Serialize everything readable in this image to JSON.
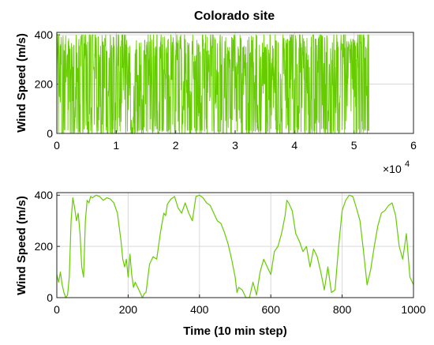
{
  "colors": {
    "series": "#66cc00",
    "axis": "#222222",
    "grid": "#d9d9d9"
  },
  "chart_data": [
    {
      "type": "line",
      "title": "Colorado site",
      "xlabel": "",
      "ylabel": "Wind Speed (m/s)",
      "xlim": [
        0,
        6
      ],
      "ylim": [
        0,
        410
      ],
      "xticks": [
        0,
        1,
        2,
        3,
        4,
        5,
        6
      ],
      "yticks": [
        0,
        200,
        400
      ],
      "x_exponent_label": "×10",
      "x_exponent_power": "4",
      "grid": true,
      "x_end": 5.25,
      "y_max": 400,
      "note": "dense trace of ~52500 points between 0 and 400 m/s"
    },
    {
      "type": "line",
      "title": "",
      "xlabel": "Time (10 min step)",
      "ylabel": "Wind Speed (m/s)",
      "xlim": [
        0,
        1000
      ],
      "ylim": [
        0,
        410
      ],
      "xticks": [
        0,
        200,
        400,
        600,
        800,
        1000
      ],
      "yticks": [
        0,
        200,
        400
      ],
      "grid": true,
      "series": [
        {
          "x": [
            0,
            5,
            10,
            15,
            20,
            25,
            30,
            35,
            40,
            45,
            50,
            55,
            60,
            65,
            70,
            75,
            80,
            85,
            90,
            95,
            100,
            110,
            120,
            130,
            140,
            150,
            160,
            170,
            180,
            185,
            190,
            195,
            200,
            205,
            210,
            215,
            220,
            230,
            240,
            245,
            250,
            260,
            270,
            280,
            290,
            300,
            305,
            310,
            320,
            330,
            340,
            350,
            360,
            370,
            380,
            390,
            400,
            410,
            420,
            430,
            440,
            450,
            460,
            470,
            480,
            490,
            500,
            505,
            510,
            520,
            530,
            540,
            550,
            560,
            570,
            580,
            590,
            600,
            610,
            620,
            630,
            640,
            645,
            650,
            660,
            670,
            680,
            690,
            700,
            710,
            720,
            730,
            740,
            750,
            760,
            770,
            780,
            790,
            800,
            810,
            820,
            830,
            840,
            850,
            860,
            870,
            880,
            890,
            900,
            910,
            920,
            930,
            940,
            950,
            960,
            970,
            980,
            990,
            1000
          ],
          "y": [
            90,
            60,
            100,
            50,
            20,
            0,
            10,
            80,
            300,
            390,
            350,
            300,
            330,
            250,
            120,
            80,
            300,
            380,
            370,
            395,
            390,
            400,
            395,
            380,
            390,
            385,
            370,
            330,
            220,
            150,
            120,
            150,
            80,
            170,
            90,
            40,
            60,
            30,
            0,
            15,
            20,
            130,
            160,
            150,
            250,
            330,
            320,
            365,
            385,
            395,
            350,
            330,
            370,
            330,
            300,
            395,
            400,
            390,
            370,
            360,
            330,
            300,
            290,
            255,
            210,
            150,
            80,
            20,
            40,
            30,
            0,
            0,
            60,
            10,
            100,
            150,
            120,
            90,
            180,
            200,
            250,
            320,
            380,
            370,
            340,
            250,
            220,
            180,
            200,
            120,
            190,
            160,
            100,
            30,
            120,
            20,
            30,
            200,
            340,
            380,
            400,
            395,
            350,
            300,
            180,
            50,
            110,
            200,
            280,
            330,
            340,
            360,
            370,
            320,
            200,
            150,
            250,
            80,
            50
          ]
        }
      ]
    }
  ]
}
